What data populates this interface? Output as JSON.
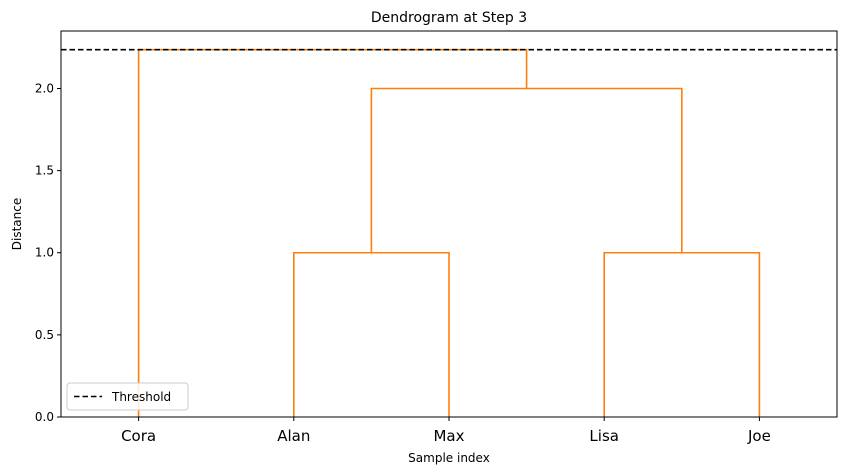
{
  "chart_data": {
    "type": "dendrogram",
    "title": "Dendrogram at Step 3",
    "xlabel": "Sample index",
    "ylabel": "Distance",
    "leaves": [
      "Cora",
      "Alan",
      "Max",
      "Lisa",
      "Joe"
    ],
    "yticks": [
      "0.0",
      "0.5",
      "1.0",
      "1.5",
      "2.0"
    ],
    "ylim": [
      0,
      2.35
    ],
    "grid": false,
    "link_color": "#ff7f0e",
    "threshold": {
      "name": "Threshold",
      "value": 2.236,
      "color": "#000000",
      "style": "dashed"
    },
    "merges": [
      {
        "left": "Alan",
        "right": "Max",
        "height": 1.0
      },
      {
        "left": "Lisa",
        "right": "Joe",
        "height": 1.0
      },
      {
        "left": "Alan+Max",
        "right": "Lisa+Joe",
        "height": 2.0
      },
      {
        "left": "Cora",
        "right": "Alan+Max+Lisa+Joe",
        "height": 2.236
      }
    ],
    "legend": {
      "position": "lower-left",
      "entries": [
        "Threshold"
      ]
    }
  }
}
